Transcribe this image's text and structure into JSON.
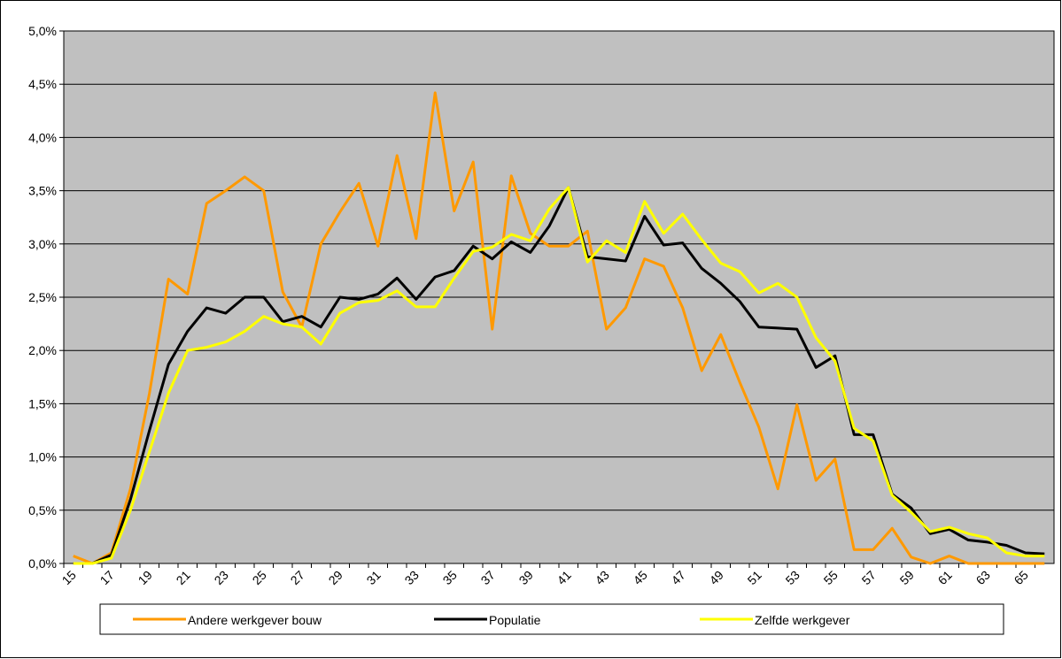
{
  "chart_data": {
    "type": "line",
    "categories": [
      "15",
      null,
      "17",
      null,
      "19",
      null,
      "21",
      null,
      "23",
      null,
      "25",
      null,
      "27",
      null,
      "29",
      null,
      "31",
      null,
      "33",
      null,
      "35",
      null,
      "37",
      null,
      "39",
      null,
      "41",
      null,
      "43",
      null,
      "45",
      null,
      "47",
      null,
      "49",
      null,
      "51",
      null,
      "53",
      null,
      "55",
      null,
      "57",
      null,
      "59",
      null,
      "61",
      null,
      "63",
      null,
      "65",
      null
    ],
    "series": [
      {
        "name": "Andere werkgever bouw",
        "color": "#ff9900",
        "values": [
          0.07,
          0.0,
          0.1,
          0.7,
          1.6,
          2.67,
          2.53,
          3.38,
          3.5,
          3.63,
          3.5,
          2.55,
          2.22,
          3.0,
          3.3,
          3.57,
          2.98,
          3.83,
          3.05,
          4.42,
          3.31,
          3.77,
          2.2,
          3.64,
          3.1,
          2.98,
          2.98,
          3.12,
          2.2,
          2.4,
          2.86,
          2.79,
          2.4,
          1.81,
          2.15,
          1.7,
          1.28,
          0.7,
          1.49,
          0.78,
          0.98,
          0.13,
          0.13,
          0.33,
          0.06,
          0.0,
          0.07,
          0.0,
          0.0,
          0.0,
          0.0,
          0.0
        ]
      },
      {
        "name": "Populatie",
        "color": "#000000",
        "values": [
          0.0,
          0.0,
          0.08,
          0.6,
          1.25,
          1.87,
          2.18,
          2.4,
          2.35,
          2.5,
          2.5,
          2.27,
          2.32,
          2.22,
          2.5,
          2.48,
          2.53,
          2.68,
          2.48,
          2.69,
          2.75,
          2.98,
          2.86,
          3.02,
          2.92,
          3.17,
          3.53,
          2.88,
          2.86,
          2.84,
          3.26,
          2.99,
          3.01,
          2.77,
          2.63,
          2.46,
          2.22,
          2.21,
          2.2,
          1.84,
          1.95,
          1.21,
          1.21,
          0.65,
          0.52,
          0.28,
          0.32,
          0.22,
          0.2,
          0.17,
          0.1,
          0.09
        ]
      },
      {
        "name": "Zelfde werkgever",
        "color": "#ffff00",
        "values": [
          0.0,
          0.0,
          0.05,
          0.5,
          1.05,
          1.6,
          2.0,
          2.03,
          2.08,
          2.18,
          2.32,
          2.25,
          2.22,
          2.06,
          2.35,
          2.45,
          2.47,
          2.56,
          2.41,
          2.41,
          2.68,
          2.93,
          2.97,
          3.09,
          3.03,
          3.33,
          3.53,
          2.83,
          3.03,
          2.92,
          3.4,
          3.1,
          3.28,
          3.04,
          2.82,
          2.74,
          2.54,
          2.63,
          2.5,
          2.12,
          1.9,
          1.27,
          1.15,
          0.64,
          0.48,
          0.3,
          0.34,
          0.28,
          0.24,
          0.1,
          0.07,
          0.07
        ]
      }
    ],
    "ylim": [
      0,
      5
    ],
    "yticks": [
      {
        "value": 0,
        "label": "0,0%"
      },
      {
        "value": 0.5,
        "label": "0,5%"
      },
      {
        "value": 1,
        "label": "1,0%"
      },
      {
        "value": 1.5,
        "label": "1,5%"
      },
      {
        "value": 2,
        "label": "2,0%"
      },
      {
        "value": 2.5,
        "label": "2,5%"
      },
      {
        "value": 3,
        "label": "3,0%"
      },
      {
        "value": 3.5,
        "label": "3,5%"
      },
      {
        "value": 4,
        "label": "4,0%"
      },
      {
        "value": 4.5,
        "label": "4,5%"
      },
      {
        "value": 5,
        "label": "5,0%"
      }
    ],
    "grid": true,
    "legend": "bottom",
    "plot_background": "#c0c0c0"
  }
}
